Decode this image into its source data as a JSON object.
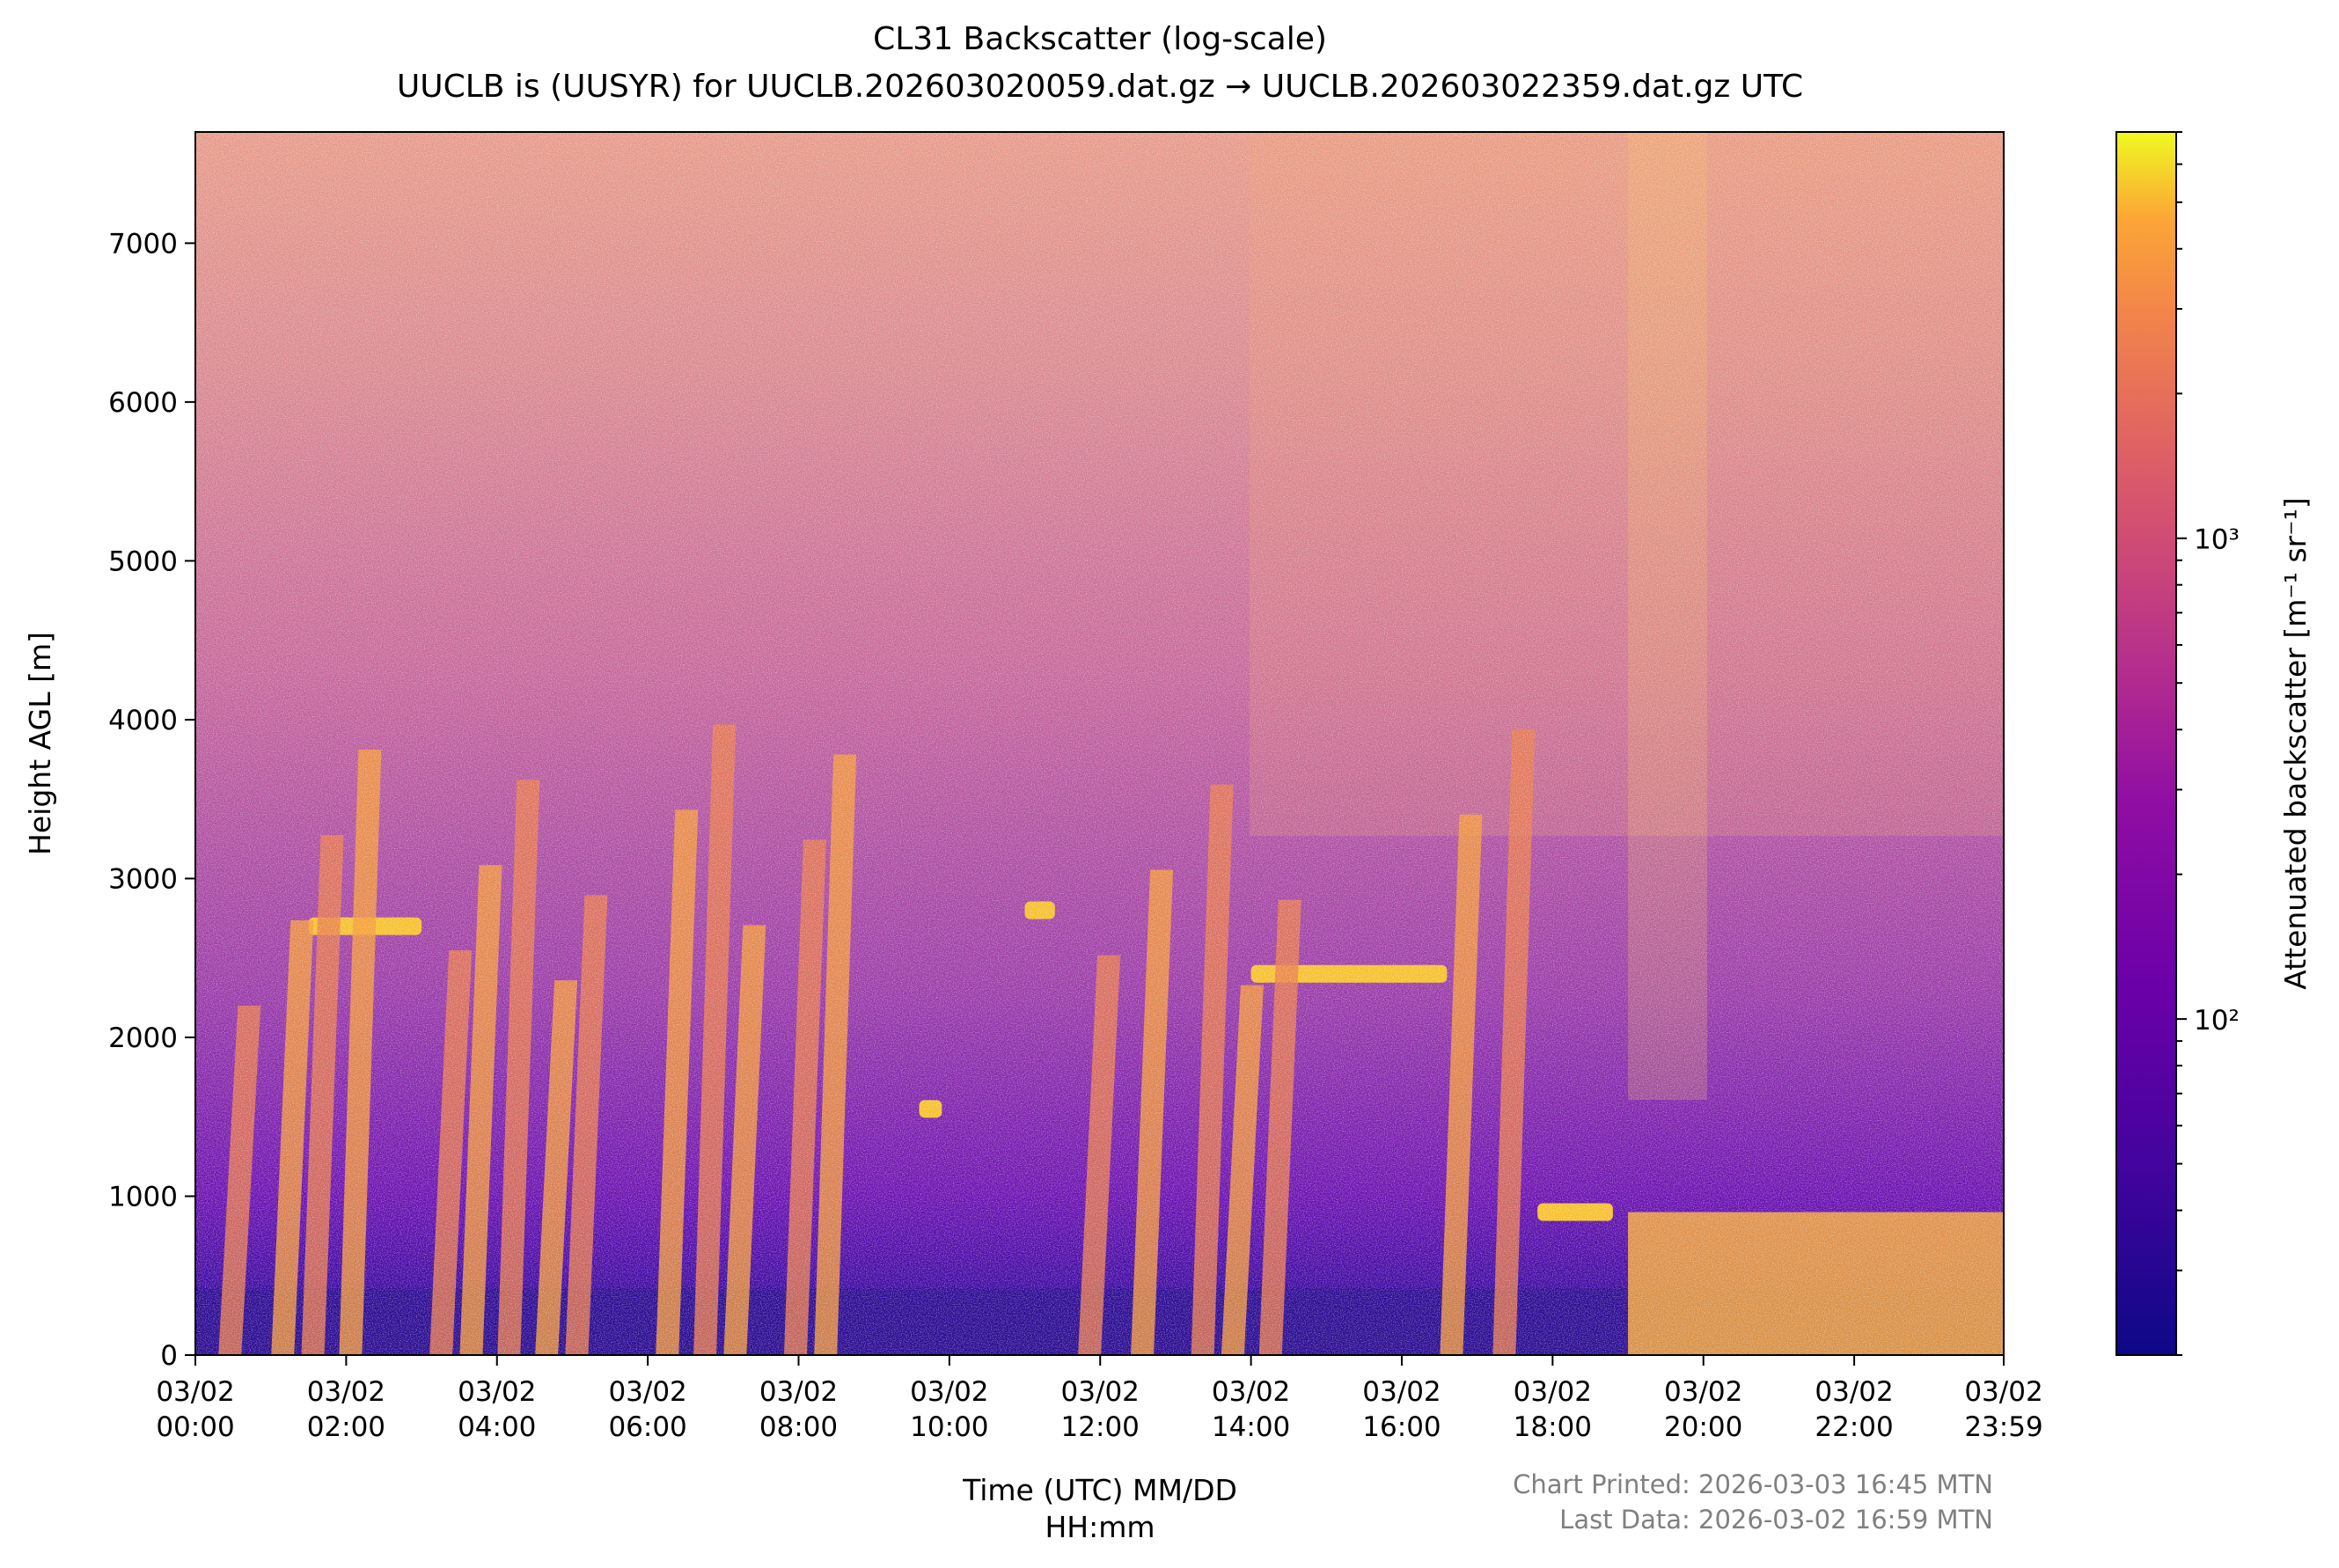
{
  "chart_data": {
    "type": "heatmap",
    "title": "CL31 Backscatter (log-scale)",
    "subtitle": "UUCLB is (UUSYR) for UUCLB.202603020059.dat.gz → UUCLB.202603022359.dat.gz UTC",
    "xlabel": "Time (UTC) MM/DD",
    "xlabel_line2": "HH:mm",
    "ylabel": "Height AGL [m]",
    "colorbar_label": "Attenuated backscatter [m⁻¹ sr⁻¹]",
    "colormap": "plasma",
    "color_scale": "log",
    "color_range": [
      20,
      7000
    ],
    "colorbar_ticks": [
      {
        "value": 100,
        "label": "10²"
      },
      {
        "value": 1000,
        "label": "10³"
      }
    ],
    "x_range_hours": [
      0,
      23.983
    ],
    "ylim": [
      0,
      7700
    ],
    "x_ticks": [
      {
        "hour": 0,
        "date": "03/02",
        "time": "00:00"
      },
      {
        "hour": 2,
        "date": "03/02",
        "time": "02:00"
      },
      {
        "hour": 4,
        "date": "03/02",
        "time": "04:00"
      },
      {
        "hour": 6,
        "date": "03/02",
        "time": "06:00"
      },
      {
        "hour": 8,
        "date": "03/02",
        "time": "08:00"
      },
      {
        "hour": 10,
        "date": "03/02",
        "time": "10:00"
      },
      {
        "hour": 12,
        "date": "03/02",
        "time": "12:00"
      },
      {
        "hour": 14,
        "date": "03/02",
        "time": "14:00"
      },
      {
        "hour": 16,
        "date": "03/02",
        "time": "16:00"
      },
      {
        "hour": 18,
        "date": "03/02",
        "time": "18:00"
      },
      {
        "hour": 20,
        "date": "03/02",
        "time": "20:00"
      },
      {
        "hour": 22,
        "date": "03/02",
        "time": "22:00"
      },
      {
        "hour": 23.983,
        "date": "03/02",
        "time": "23:59"
      }
    ],
    "y_ticks": [
      0,
      1000,
      2000,
      3000,
      4000,
      5000,
      6000,
      7000
    ],
    "cloud_layers": [
      {
        "hour_start": 1.5,
        "hour_end": 3.0,
        "height_m": 2700
      },
      {
        "hour_start": 9.6,
        "hour_end": 9.9,
        "height_m": 1550
      },
      {
        "hour_start": 11.0,
        "hour_end": 11.4,
        "height_m": 2800
      },
      {
        "hour_start": 14.0,
        "hour_end": 16.6,
        "height_m": 2400
      },
      {
        "hour_start": 17.8,
        "hour_end": 18.8,
        "height_m": 900
      }
    ],
    "low_cloud_region": {
      "hour_start": 19.0,
      "hour_end": 23.983,
      "top_m": 900
    }
  },
  "footer": {
    "printed": "Chart Printed: 2026-03-03 16:45 MTN",
    "last_data": "Last Data: 2026-03-02 16:59 MTN"
  }
}
